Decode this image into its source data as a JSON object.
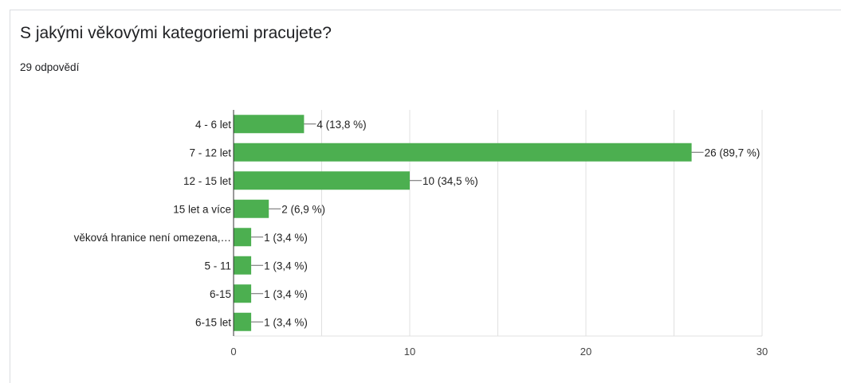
{
  "card": {
    "title": "S jakými věkovými kategoriemi pracujete?",
    "subtitle": "29 odpovědí"
  },
  "colors": {
    "bar": "#4caf50",
    "grid": "#e0e0e0",
    "axis": "#333333",
    "label": "#222222",
    "tick": "#444444",
    "leader": "#666666"
  },
  "chart_data": {
    "type": "bar",
    "orientation": "horizontal",
    "categories": [
      "4 - 6 let",
      "7 - 12 let",
      "12 - 15 let",
      "15 let a více",
      "věková hranice není omezena,…",
      "5 - 11",
      "6-15",
      "6-15 let"
    ],
    "values": [
      4,
      26,
      10,
      2,
      1,
      1,
      1,
      1
    ],
    "data_labels": [
      "4 (13,8 %)",
      "26 (89,7 %)",
      "10 (34,5 %)",
      "2 (6,9 %)",
      "1 (3,4 %)",
      "1 (3,4 %)",
      "1 (3,4 %)",
      "1 (3,4 %)"
    ],
    "xlim": [
      0,
      30
    ],
    "xticks": [
      0,
      10,
      20,
      30
    ],
    "grid": true
  }
}
